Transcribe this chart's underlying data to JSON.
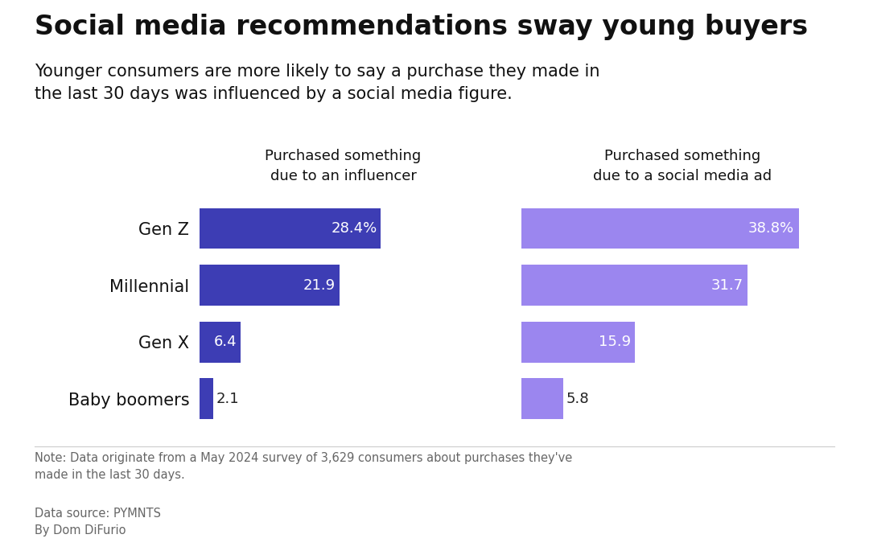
{
  "title": "Social media recommendations sway young buyers",
  "subtitle": "Younger consumers are more likely to say a purchase they made in\nthe last 30 days was influenced by a social media figure.",
  "categories": [
    "Gen Z",
    "Millennial",
    "Gen X",
    "Baby boomers"
  ],
  "col1_label": "Purchased something\ndue to an influencer",
  "col2_label": "Purchased something\ndue to a social media ad",
  "influencer_values": [
    28.4,
    21.9,
    6.4,
    2.1
  ],
  "ad_values": [
    38.8,
    31.7,
    15.9,
    5.8
  ],
  "influencer_color": "#3d3db4",
  "ad_color": "#9b86ef",
  "note": "Note: Data originate from a May 2024 survey of 3,629 consumers about purchases they've\nmade in the last 30 days.",
  "source": "Data source: PYMNTS\nBy Dom DiFurio",
  "background_color": "#ffffff",
  "label_color_white": "#ffffff",
  "label_color_dark": "#222222",
  "text_color": "#111111",
  "note_color": "#666666",
  "bar_height": 0.72,
  "max_val": 45,
  "cat_fontsize": 15,
  "bar_label_fontsize": 13,
  "header_fontsize": 13,
  "title_fontsize": 24,
  "subtitle_fontsize": 15
}
